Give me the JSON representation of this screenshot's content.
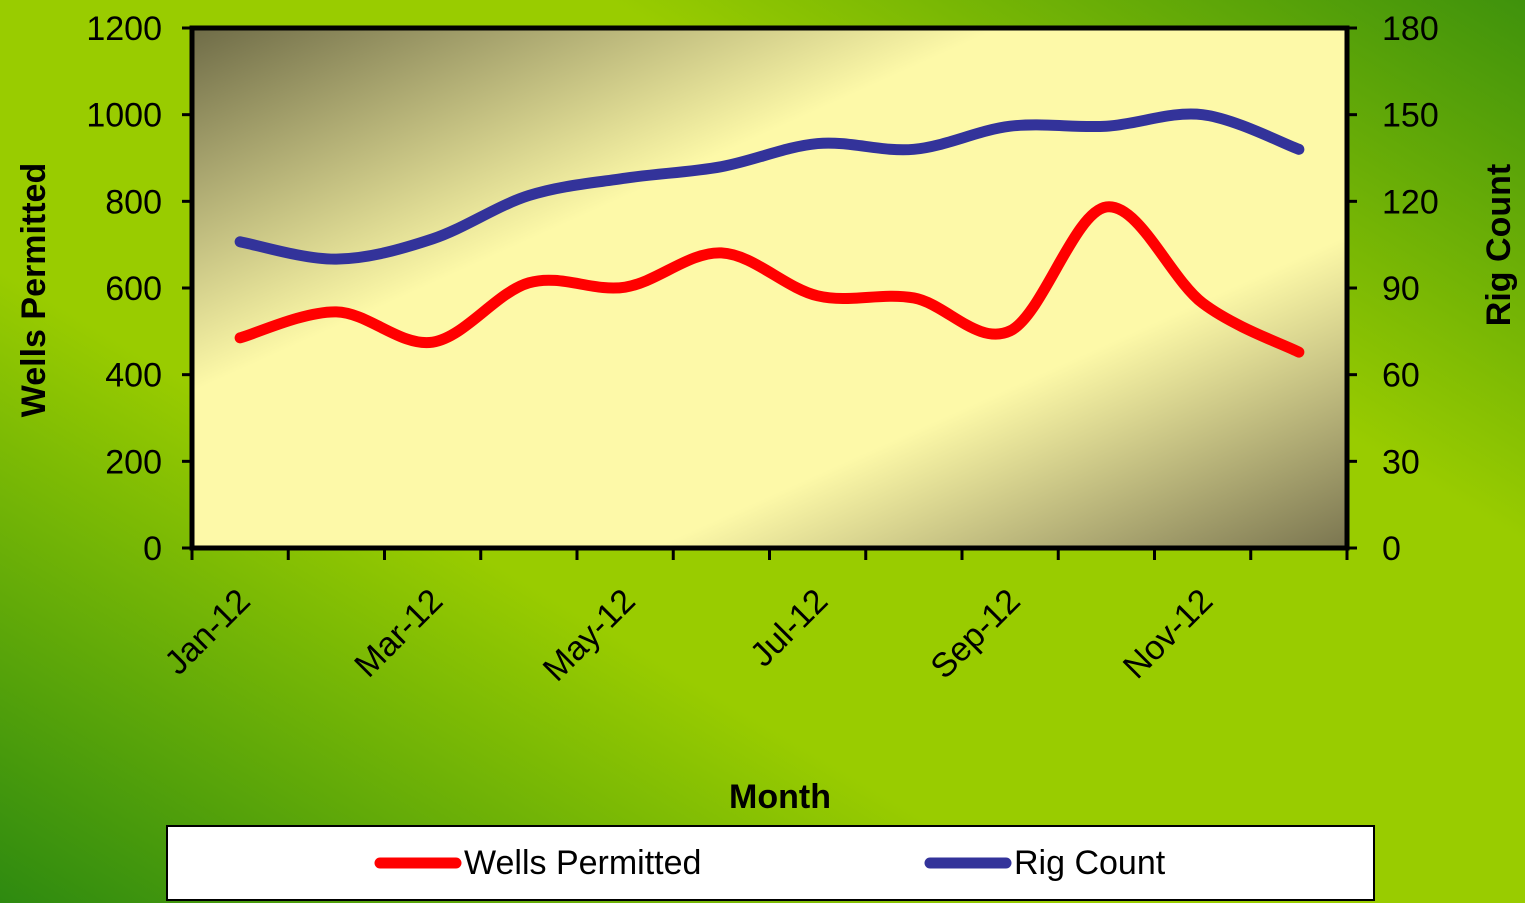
{
  "chart_data": {
    "type": "line",
    "x_label": "Month",
    "y_label": "Wells Permitted",
    "y2_label": "Rig Count",
    "categories": [
      "Jan-12",
      null,
      "Mar-12",
      null,
      "May-12",
      null,
      "Jul-12",
      null,
      "Sep-12",
      null,
      "Nov-12",
      null
    ],
    "series": [
      {
        "name": "Wells Permitted",
        "color": "#ff0000",
        "values": [
          485,
          545,
          475,
          612,
          602,
          681,
          582,
          577,
          501,
          787,
          565,
          452
        ]
      },
      {
        "name": "Rig Count",
        "color": "#33339a",
        "axis": "y2",
        "values": [
          106,
          100,
          107,
          122,
          128,
          132,
          140,
          138,
          146,
          146,
          150,
          138
        ]
      }
    ],
    "ylim": [
      0,
      1200
    ],
    "yticks": [
      0,
      200,
      400,
      600,
      800,
      1000,
      1200
    ],
    "y2lim": [
      0,
      180
    ],
    "y2ticks": [
      0,
      30,
      60,
      90,
      120,
      150,
      180
    ],
    "legend": "bottom"
  }
}
